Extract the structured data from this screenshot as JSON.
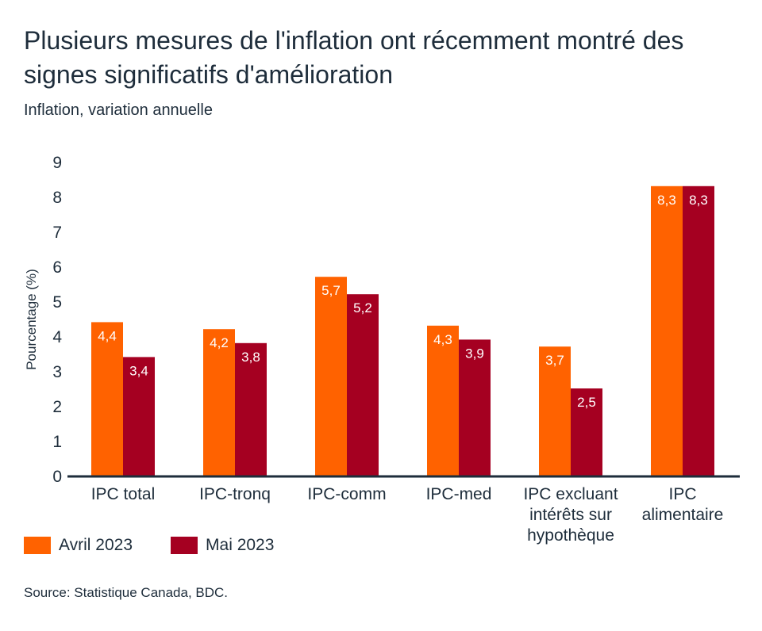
{
  "title": "Plusieurs mesures de l'inflation ont récemment montré des signes significatifs d'amélioration",
  "subtitle": "Inflation, variation annuelle",
  "source": "Source: Statistique Canada, BDC.",
  "chart_data": {
    "type": "bar",
    "title": "Plusieurs mesures de l'inflation ont récemment montré des signes significatifs d'amélioration",
    "subtitle": "Inflation, variation annuelle",
    "ylabel": "Pourcentage (%)",
    "xlabel": "",
    "ylim": [
      0,
      9
    ],
    "yticks": [
      "0",
      "1",
      "2",
      "3",
      "4",
      "5",
      "6",
      "7",
      "8",
      "9"
    ],
    "grid": false,
    "legend": "bottom-left",
    "categories": [
      [
        "IPC total"
      ],
      [
        "IPC-tronq"
      ],
      [
        "IPC-comm"
      ],
      [
        "IPC-med"
      ],
      [
        "IPC excluant",
        "intérêts sur",
        "hypothèque"
      ],
      [
        "IPC",
        "alimentaire"
      ]
    ],
    "series": [
      {
        "name": "Avril 2023",
        "color": "#FF6200",
        "values": [
          4.4,
          4.2,
          5.7,
          4.3,
          3.7,
          8.3
        ],
        "labels": [
          "4,4",
          "4,2",
          "5,7",
          "4,3",
          "3,7",
          "8,3"
        ]
      },
      {
        "name": "Mai 2023",
        "color": "#A50021",
        "values": [
          3.4,
          3.8,
          5.2,
          3.9,
          2.5,
          8.3
        ],
        "labels": [
          "3,4",
          "3,8",
          "5,2",
          "3,9",
          "2,5",
          "8,3"
        ]
      }
    ]
  }
}
